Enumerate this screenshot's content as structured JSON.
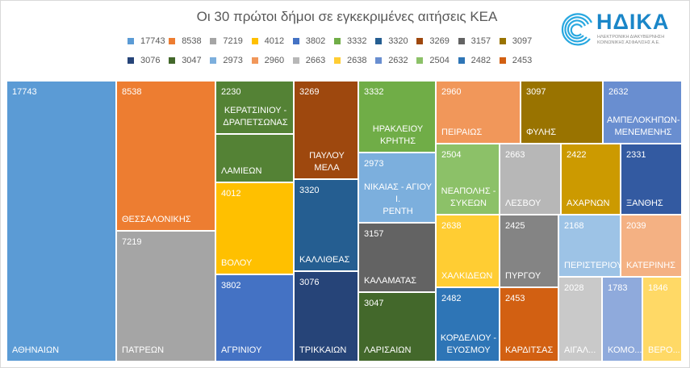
{
  "chart_data": {
    "type": "treemap",
    "title": "Οι 30 πρώτοι δήμοι σε εγκεκριμένες αιτήσεις ΚΕΑ",
    "legend_placement": "top",
    "legend": [
      {
        "label": "17743",
        "color": "#5B9BD5"
      },
      {
        "label": "8538",
        "color": "#ED7D31"
      },
      {
        "label": "7219",
        "color": "#A5A5A5"
      },
      {
        "label": "4012",
        "color": "#FFC000"
      },
      {
        "label": "3802",
        "color": "#4472C4"
      },
      {
        "label": "3332",
        "color": "#70AD47"
      },
      {
        "label": "3320",
        "color": "#255E91"
      },
      {
        "label": "3269",
        "color": "#9E480E"
      },
      {
        "label": "3157",
        "color": "#636363"
      },
      {
        "label": "3097",
        "color": "#997300"
      },
      {
        "label": "3076",
        "color": "#264478"
      },
      {
        "label": "3047",
        "color": "#43682B"
      },
      {
        "label": "2973",
        "color": "#7CAFDD"
      },
      {
        "label": "2960",
        "color": "#F1975A"
      },
      {
        "label": "2663",
        "color": "#B7B7B7"
      },
      {
        "label": "2638",
        "color": "#FFCD33"
      },
      {
        "label": "2632",
        "color": "#698ED0"
      },
      {
        "label": "2504",
        "color": "#8CC168"
      },
      {
        "label": "2482",
        "color": "#2E75B6"
      },
      {
        "label": "2453",
        "color": "#D26012"
      }
    ],
    "tiles": [
      {
        "label": "ΑΘΗΝΑΙΩΝ",
        "value": "17743",
        "color": "#5B9BD5"
      },
      {
        "label": "ΘΕΣΣΑΛΟΝΙΚΗΣ",
        "value": "8538",
        "color": "#ED7D31"
      },
      {
        "label": "ΠΑΤΡΕΩΝ",
        "value": "7219",
        "color": "#A5A5A5"
      },
      {
        "label": "ΚΕΡΑΤΣΙΝΙΟΥ -\nΔΡΑΠΕΤΣΩΝΑΣ",
        "value": "2230",
        "color": "#548235"
      },
      {
        "label": "ΛΑΜΙΕΩΝ",
        "value": "",
        "color": "#548235"
      },
      {
        "label": "ΒΟΛΟΥ",
        "value": "4012",
        "color": "#FFC000"
      },
      {
        "label": "ΑΓΡΙΝΙΟΥ",
        "value": "3802",
        "color": "#4472C4"
      },
      {
        "label": "ΠΑΥΛΟΥ\nΜΕΛΑ",
        "value": "3269",
        "color": "#9E480E"
      },
      {
        "label": "ΚΑΛΛΙΘΕΑΣ",
        "value": "3320",
        "color": "#255E91"
      },
      {
        "label": "ΤΡΙΚΚΑΙΩΝ",
        "value": "3076",
        "color": "#264478"
      },
      {
        "label": "ΗΡΑΚΛΕΙΟΥ\nΚΡΗΤΗΣ",
        "value": "3332",
        "color": "#70AD47"
      },
      {
        "label": "ΝΙΚΑΙΑΣ - ΑΓΙΟΥ Ι.\nΡΕΝΤΗ",
        "value": "2973",
        "color": "#7CAFDD"
      },
      {
        "label": "ΚΑΛΑΜΑΤΑΣ",
        "value": "3157",
        "color": "#636363"
      },
      {
        "label": "ΛΑΡΙΣΑΙΩΝ",
        "value": "3047",
        "color": "#43682B"
      },
      {
        "label": "ΠΕΙΡΑΙΩΣ",
        "value": "2960",
        "color": "#F1975A"
      },
      {
        "label": "ΦΥΛΗΣ",
        "value": "3097",
        "color": "#997300"
      },
      {
        "label": "ΑΜΠΕΛΟΚΗΠΩΝ-\nΜΕΝΕΜΕΝΗΣ",
        "value": "2632",
        "color": "#698ED0"
      },
      {
        "label": "ΝΕΑΠΟΛΗΣ -\nΣΥΚΕΩΝ",
        "value": "2504",
        "color": "#8CC168"
      },
      {
        "label": "ΛΕΣΒΟΥ",
        "value": "2663",
        "color": "#B7B7B7"
      },
      {
        "label": "ΑΧΑΡΝΩΝ",
        "value": "2422",
        "color": "#CC9A00"
      },
      {
        "label": "ΞΑΝΘΗΣ",
        "value": "2331",
        "color": "#335AA1"
      },
      {
        "label": "ΧΑΛΚΙΔΕΩΝ",
        "value": "2638",
        "color": "#FFCD33"
      },
      {
        "label": "ΠΥΡΓΟΥ",
        "value": "2425",
        "color": "#848484"
      },
      {
        "label": "ΠΕΡΙΣΤΕΡΙΟΥ",
        "value": "2168",
        "color": "#9DC3E6"
      },
      {
        "label": "ΚΑΤΕΡΙΝΗΣ",
        "value": "2039",
        "color": "#F4B183"
      },
      {
        "label": "ΚΟΡΔΕΛΙΟΥ -\nΕΥΟΣΜΟΥ",
        "value": "2482",
        "color": "#2E75B6"
      },
      {
        "label": "ΚΑΡΔΙΤΣΑΣ",
        "value": "2453",
        "color": "#D26012"
      },
      {
        "label": "ΑΙΓΑΛ...",
        "value": "2028",
        "color": "#C9C9C9"
      },
      {
        "label": "ΚΟΜΟ...",
        "value": "1783",
        "color": "#8FAADC"
      },
      {
        "label": "ΒΕΡΟ...",
        "value": "1846",
        "color": "#FFD966"
      }
    ]
  },
  "logo": {
    "name": "ΗΔΙΚΑ",
    "subtitle": "ΗΛΕΚΤΡΟΝΙΚΗ ΔΙΑΚΥΒΕΡΝΗΣΗ ΚΟΙΝΩΝΙΚΗΣ ΑΣΦΑΛΙΣΗΣ Α.Ε."
  }
}
